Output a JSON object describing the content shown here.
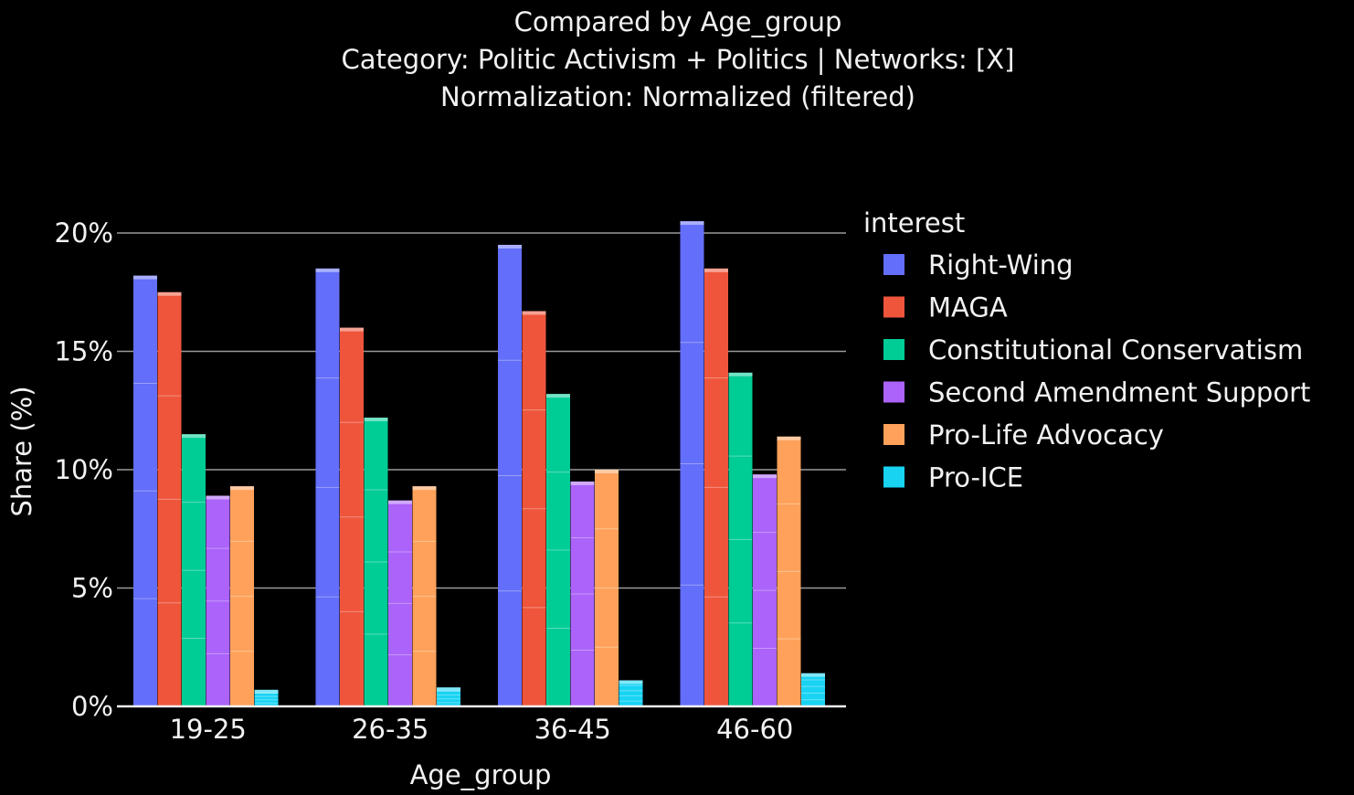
{
  "chart_data": {
    "type": "bar",
    "title_lines": [
      "Compared by Age_group",
      "Category: Politic Activism + Politics | Networks: [X]",
      "Normalization: Normalized (filtered)"
    ],
    "xlabel": "Age_group",
    "ylabel": "Share (%)",
    "ylim": [
      0,
      20.5
    ],
    "yticks": [
      0,
      5,
      10,
      15,
      20
    ],
    "ytick_labels": [
      "0%",
      "5%",
      "10%",
      "15%",
      "20%"
    ],
    "grid": true,
    "legend_title": "interest",
    "legend_position": "right",
    "categories": [
      "19-25",
      "26-35",
      "36-45",
      "46-60"
    ],
    "series": [
      {
        "name": "Right-Wing",
        "color": "#636efa",
        "values": [
          18.2,
          18.5,
          19.5,
          20.5
        ]
      },
      {
        "name": "MAGA",
        "color": "#ef553b",
        "values": [
          17.5,
          16.0,
          16.7,
          18.5
        ]
      },
      {
        "name": "Constitutional Conservatism",
        "color": "#00cc96",
        "values": [
          11.5,
          12.2,
          13.2,
          14.1
        ]
      },
      {
        "name": "Second Amendment Support",
        "color": "#ab63fa",
        "values": [
          8.9,
          8.7,
          9.5,
          9.8
        ]
      },
      {
        "name": "Pro-Life Advocacy",
        "color": "#ffa15a",
        "values": [
          9.3,
          9.3,
          10.0,
          11.4
        ]
      },
      {
        "name": "Pro-ICE",
        "color": "#19d3f3",
        "values": [
          0.7,
          0.8,
          1.1,
          1.4
        ]
      }
    ]
  }
}
